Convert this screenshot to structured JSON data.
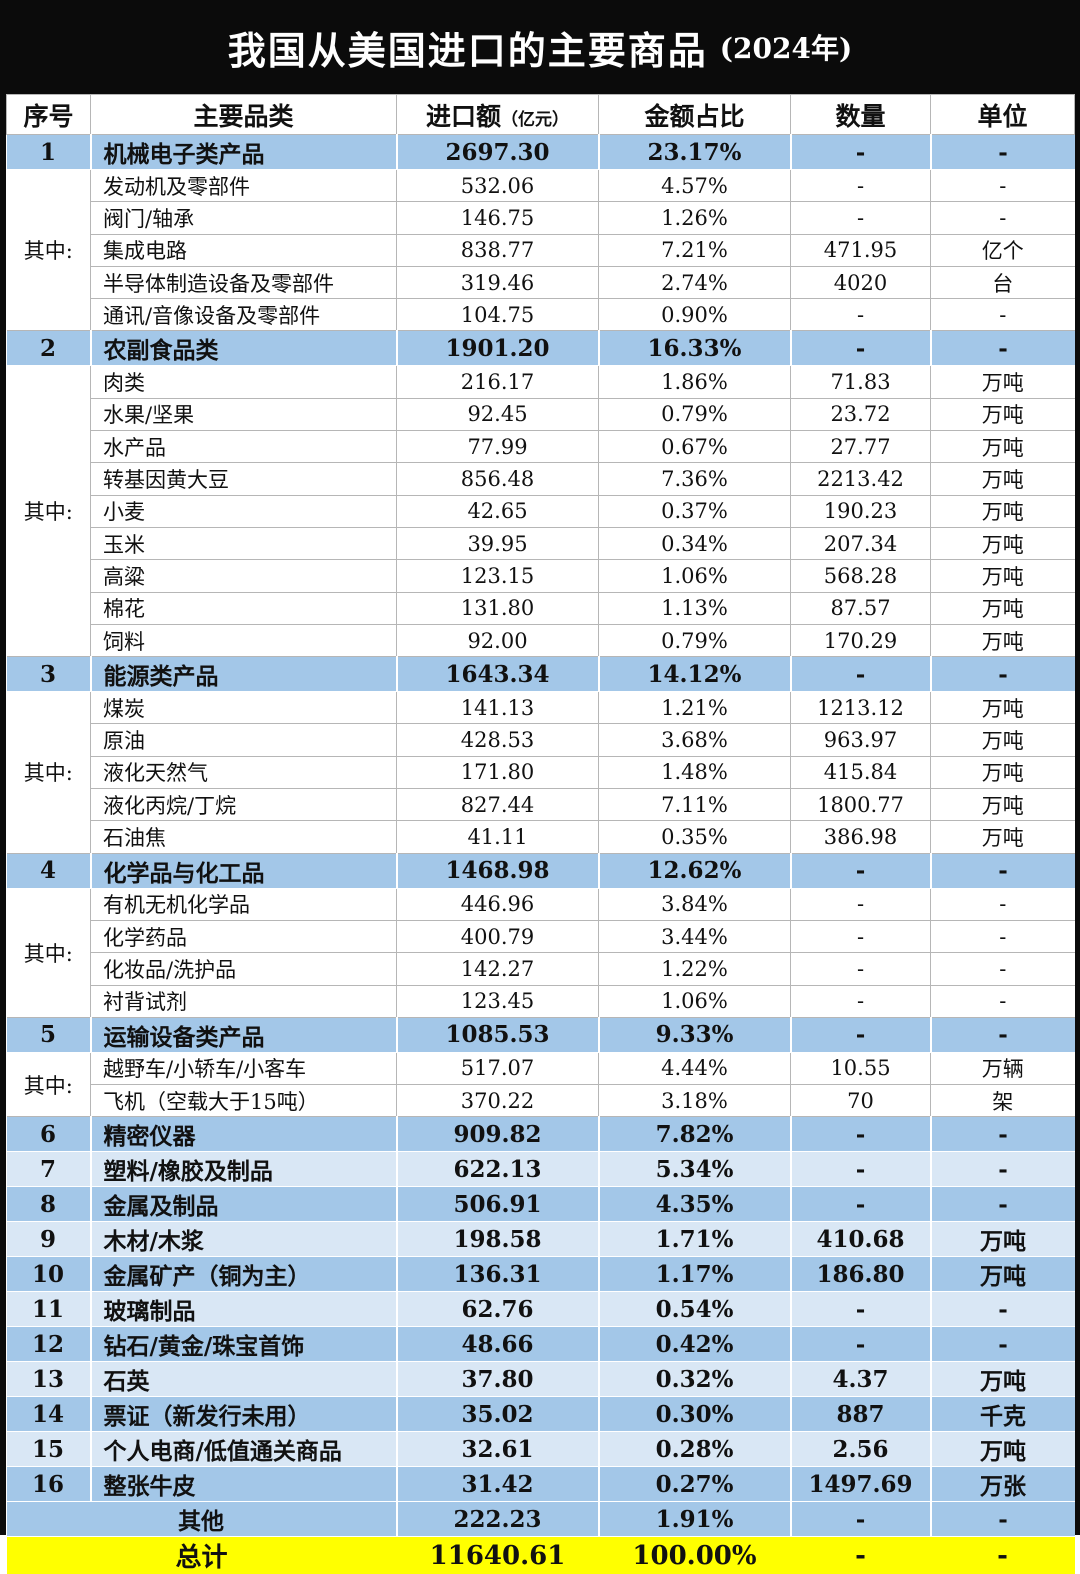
{
  "title": {
    "main": "我国从美国进口的主要商品",
    "year": "(2024年)"
  },
  "colors": {
    "frame_black": "#0b0b0b",
    "section_blue": "#a3c7e8",
    "light_blue": "#d9e7f5",
    "total_yellow": "#ffff00",
    "row_white": "#ffffff"
  },
  "chart_data": {
    "type": "table",
    "title": "我国从美国进口的主要商品 (2024年)",
    "among_label": "其中:",
    "columns": [
      {
        "label": "序号"
      },
      {
        "label": "主要品类"
      },
      {
        "label": "进口额",
        "sub": "（亿元）"
      },
      {
        "label": "金额占比"
      },
      {
        "label": "数量"
      },
      {
        "label": "单位"
      }
    ],
    "rows": [
      {
        "style": "section",
        "no": "1",
        "label": "机械电子类产品",
        "amount": "2697.30",
        "share": "23.17%",
        "qty": "-",
        "unit": "-"
      },
      {
        "style": "sub",
        "group": 5,
        "label": "发动机及零部件",
        "amount": "532.06",
        "share": "4.57%",
        "qty": "-",
        "unit": "-"
      },
      {
        "style": "sub",
        "label": "阀门/轴承",
        "amount": "146.75",
        "share": "1.26%",
        "qty": "-",
        "unit": "-"
      },
      {
        "style": "sub",
        "label": "集成电路",
        "amount": "838.77",
        "share": "7.21%",
        "qty": "471.95",
        "unit": "亿个"
      },
      {
        "style": "sub",
        "label": "半导体制造设备及零部件",
        "amount": "319.46",
        "share": "2.74%",
        "qty": "4020",
        "unit": "台"
      },
      {
        "style": "sub",
        "label": "通讯/音像设备及零部件",
        "amount": "104.75",
        "share": "0.90%",
        "qty": "-",
        "unit": "-"
      },
      {
        "style": "section",
        "no": "2",
        "label": "农副食品类",
        "amount": "1901.20",
        "share": "16.33%",
        "qty": "-",
        "unit": "-"
      },
      {
        "style": "sub",
        "group": 9,
        "label": "肉类",
        "amount": "216.17",
        "share": "1.86%",
        "qty": "71.83",
        "unit": "万吨"
      },
      {
        "style": "sub",
        "label": "水果/坚果",
        "amount": "92.45",
        "share": "0.79%",
        "qty": "23.72",
        "unit": "万吨"
      },
      {
        "style": "sub",
        "label": "水产品",
        "amount": "77.99",
        "share": "0.67%",
        "qty": "27.77",
        "unit": "万吨"
      },
      {
        "style": "sub",
        "label": "转基因黄大豆",
        "amount": "856.48",
        "share": "7.36%",
        "qty": "2213.42",
        "unit": "万吨"
      },
      {
        "style": "sub",
        "label": "小麦",
        "amount": "42.65",
        "share": "0.37%",
        "qty": "190.23",
        "unit": "万吨"
      },
      {
        "style": "sub",
        "label": "玉米",
        "amount": "39.95",
        "share": "0.34%",
        "qty": "207.34",
        "unit": "万吨"
      },
      {
        "style": "sub",
        "label": "高粱",
        "amount": "123.15",
        "share": "1.06%",
        "qty": "568.28",
        "unit": "万吨"
      },
      {
        "style": "sub",
        "label": "棉花",
        "amount": "131.80",
        "share": "1.13%",
        "qty": "87.57",
        "unit": "万吨"
      },
      {
        "style": "sub",
        "label": "饲料",
        "amount": "92.00",
        "share": "0.79%",
        "qty": "170.29",
        "unit": "万吨"
      },
      {
        "style": "section",
        "no": "3",
        "label": "能源类产品",
        "amount": "1643.34",
        "share": "14.12%",
        "qty": "-",
        "unit": "-"
      },
      {
        "style": "sub",
        "group": 5,
        "label": "煤炭",
        "amount": "141.13",
        "share": "1.21%",
        "qty": "1213.12",
        "unit": "万吨"
      },
      {
        "style": "sub",
        "label": "原油",
        "amount": "428.53",
        "share": "3.68%",
        "qty": "963.97",
        "unit": "万吨"
      },
      {
        "style": "sub",
        "label": "液化天然气",
        "amount": "171.80",
        "share": "1.48%",
        "qty": "415.84",
        "unit": "万吨"
      },
      {
        "style": "sub",
        "label": "液化丙烷/丁烷",
        "amount": "827.44",
        "share": "7.11%",
        "qty": "1800.77",
        "unit": "万吨"
      },
      {
        "style": "sub",
        "label": "石油焦",
        "amount": "41.11",
        "share": "0.35%",
        "qty": "386.98",
        "unit": "万吨"
      },
      {
        "style": "section",
        "no": "4",
        "label": "化学品与化工品",
        "amount": "1468.98",
        "share": "12.62%",
        "qty": "-",
        "unit": "-"
      },
      {
        "style": "sub",
        "group": 4,
        "label": "有机无机化学品",
        "amount": "446.96",
        "share": "3.84%",
        "qty": "-",
        "unit": "-"
      },
      {
        "style": "sub",
        "label": "化学药品",
        "amount": "400.79",
        "share": "3.44%",
        "qty": "-",
        "unit": "-"
      },
      {
        "style": "sub",
        "label": "化妆品/洗护品",
        "amount": "142.27",
        "share": "1.22%",
        "qty": "-",
        "unit": "-"
      },
      {
        "style": "sub",
        "label": "衬背试剂",
        "amount": "123.45",
        "share": "1.06%",
        "qty": "-",
        "unit": "-"
      },
      {
        "style": "section",
        "no": "5",
        "label": "运输设备类产品",
        "amount": "1085.53",
        "share": "9.33%",
        "qty": "-",
        "unit": "-"
      },
      {
        "style": "sub",
        "group": 2,
        "label": "越野车/小轿车/小客车",
        "amount": "517.07",
        "share": "4.44%",
        "qty": "10.55",
        "unit": "万辆"
      },
      {
        "style": "sub",
        "label": "飞机（空载大于15吨）",
        "amount": "370.22",
        "share": "3.18%",
        "qty": "70",
        "unit": "架"
      },
      {
        "style": "blue",
        "no": "6",
        "label": "精密仪器",
        "amount": "909.82",
        "share": "7.82%",
        "qty": "-",
        "unit": "-"
      },
      {
        "style": "light",
        "no": "7",
        "label": "塑料/橡胶及制品",
        "amount": "622.13",
        "share": "5.34%",
        "qty": "-",
        "unit": "-"
      },
      {
        "style": "blue",
        "no": "8",
        "label": "金属及制品",
        "amount": "506.91",
        "share": "4.35%",
        "qty": "-",
        "unit": "-"
      },
      {
        "style": "light",
        "no": "9",
        "label": "木材/木浆",
        "amount": "198.58",
        "share": "1.71%",
        "qty": "410.68",
        "unit": "万吨"
      },
      {
        "style": "blue",
        "no": "10",
        "label": "金属矿产（铜为主）",
        "amount": "136.31",
        "share": "1.17%",
        "qty": "186.80",
        "unit": "万吨"
      },
      {
        "style": "light",
        "no": "11",
        "label": "玻璃制品",
        "amount": "62.76",
        "share": "0.54%",
        "qty": "-",
        "unit": "-"
      },
      {
        "style": "blue",
        "no": "12",
        "label": "钻石/黄金/珠宝首饰",
        "amount": "48.66",
        "share": "0.42%",
        "qty": "-",
        "unit": "-"
      },
      {
        "style": "light",
        "no": "13",
        "label": "石英",
        "amount": "37.80",
        "share": "0.32%",
        "qty": "4.37",
        "unit": "万吨"
      },
      {
        "style": "blue",
        "no": "14",
        "label": "票证（新发行未用）",
        "amount": "35.02",
        "share": "0.30%",
        "qty": "887",
        "unit": "千克"
      },
      {
        "style": "light",
        "no": "15",
        "label": "个人电商/低值通关商品",
        "amount": "32.61",
        "share": "0.28%",
        "qty": "2.56",
        "unit": "万吨"
      },
      {
        "style": "blue",
        "no": "16",
        "label": "整张牛皮",
        "amount": "31.42",
        "share": "0.27%",
        "qty": "1497.69",
        "unit": "万张"
      },
      {
        "style": "other",
        "label": "其他",
        "amount": "222.23",
        "share": "1.91%",
        "qty": "-",
        "unit": "-"
      },
      {
        "style": "total",
        "label": "总计",
        "amount": "11640.61",
        "share": "100.00%",
        "qty": "-",
        "unit": "-"
      }
    ]
  }
}
